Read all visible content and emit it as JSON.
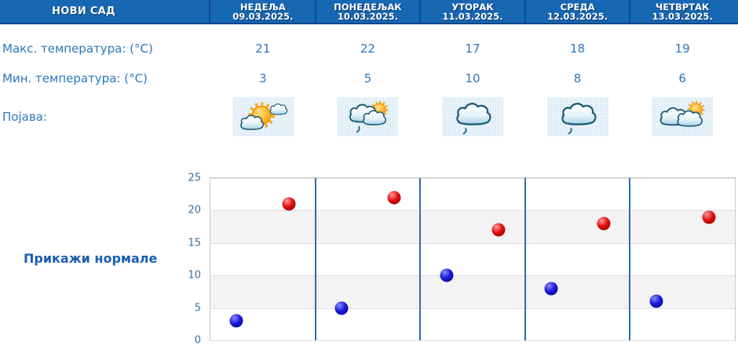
{
  "header": {
    "location": "НОВИ САД",
    "days": [
      {
        "name": "НЕДЕЉА",
        "date": "09.03.2025."
      },
      {
        "name": "ПОНЕДЕЉАК",
        "date": "10.03.2025."
      },
      {
        "name": "УТОРАК",
        "date": "11.03.2025."
      },
      {
        "name": "СРЕДА",
        "date": "12.03.2025."
      },
      {
        "name": "ЧЕТВРТАК",
        "date": "13.03.2025."
      }
    ]
  },
  "table": {
    "max_row": {
      "label": "Макс. температура: (°C)",
      "values": [
        "21",
        "22",
        "17",
        "18",
        "19"
      ]
    },
    "min_row": {
      "label": "Мин. температура: (°C)",
      "values": [
        "3",
        "5",
        "10",
        "8",
        "6"
      ]
    },
    "pojava_label": "Појава:",
    "icons": [
      "sun-with-clouds-icon",
      "clouds-sun-drizzle-icon",
      "cloud-drizzle-icon",
      "cloud-drizzle-icon",
      "clouds-sun-icon"
    ]
  },
  "link": {
    "label": "Прикажи нормале"
  },
  "colors": {
    "header_bg": "#1767b3",
    "header_separator": "#0d4a8c",
    "text_blue": "#2b77bb",
    "link_blue": "#1a5eb1",
    "axis_label": "#3c6f9f",
    "chart_separator": "#2e6da8",
    "gridline": "#dedede",
    "plot_border": "#c9c9c9"
  },
  "chart_data": {
    "type": "scatter",
    "categories": [
      "09.03.2025.",
      "10.03.2025.",
      "11.03.2025.",
      "12.03.2025.",
      "13.03.2025."
    ],
    "series": [
      {
        "name": "Макс. температура (°C)",
        "dot_name": "max-temperature-dot",
        "color": "#d40000",
        "gradient": [
          "#ff9a9a",
          "#e01010",
          "#7c0000"
        ],
        "values": [
          21,
          22,
          17,
          18,
          19
        ],
        "x_frac": 0.75
      },
      {
        "name": "Мин. температура (°C)",
        "dot_name": "min-temperature-dot",
        "color": "#0a0ad0",
        "gradient": [
          "#8b8bff",
          "#1a1ad8",
          "#000080"
        ],
        "values": [
          3,
          5,
          10,
          8,
          6
        ],
        "x_frac": 0.25
      }
    ],
    "ylim": [
      0,
      25
    ],
    "ytick_step": 5,
    "grid": true,
    "legend": "none",
    "band_colors": [
      "#ffffff",
      "#f3f3f3"
    ],
    "separator_color": "#2e6da8"
  }
}
